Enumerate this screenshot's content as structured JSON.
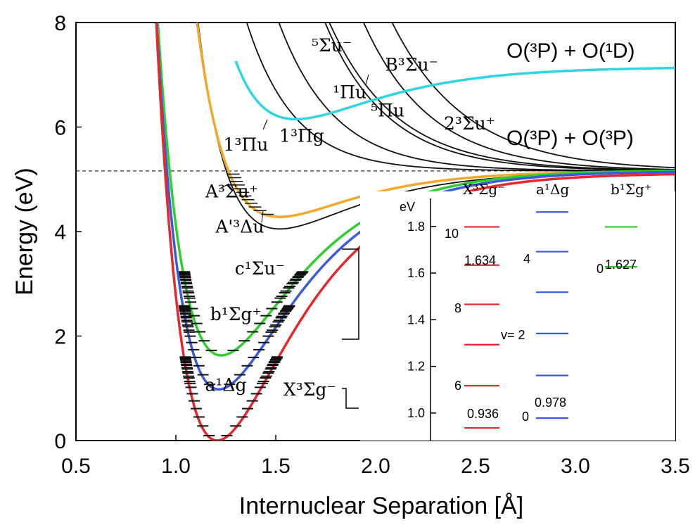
{
  "chart_data": {
    "type": "line",
    "xlabel": "Internuclear Separation [Å]",
    "ylabel": "Energy (eV)",
    "xlim": [
      0.5,
      3.5
    ],
    "ylim": [
      0,
      8
    ],
    "xticks": [
      "0.5",
      "1.0",
      "1.5",
      "2.0",
      "2.5",
      "3.0",
      "3.5"
    ],
    "yticks": [
      "0",
      "2",
      "4",
      "6",
      "8"
    ],
    "dissociation_limit": 5.16,
    "series": [
      {
        "name": "X³Σg⁻",
        "color": "#e8262b",
        "D": 5.12,
        "a": 2.66,
        "re": 1.207,
        "T": 0
      },
      {
        "name": "a¹Δg",
        "color": "#3b5bdb",
        "D": 4.18,
        "a": 2.67,
        "re": 1.215,
        "T": 0.98
      },
      {
        "name": "b¹Σg⁺",
        "color": "#2fce2f",
        "D": 3.55,
        "a": 2.68,
        "re": 1.227,
        "T": 1.63
      },
      {
        "name": "A³Σu⁺ / A'³Δu",
        "color": "#f0a92a",
        "D": 0.88,
        "a": 2.7,
        "re": 1.52,
        "T": 4.28
      },
      {
        "name": "c¹Σu⁻",
        "color": "#111111",
        "D": 1.1,
        "a": 2.6,
        "re": 1.52,
        "T": 4.05
      },
      {
        "name": "B³Σu⁻",
        "color": "#2fd6e0",
        "D": 1.0,
        "a": 2.4,
        "re": 1.6,
        "T": 6.15
      },
      {
        "name": "1³Πu",
        "color": "#111111"
      },
      {
        "name": "1³Πg",
        "color": "#111111"
      },
      {
        "name": "⁵Σu⁻",
        "color": "#111111"
      },
      {
        "name": "¹Πu",
        "color": "#111111"
      },
      {
        "name": "⁵Πu",
        "color": "#111111"
      },
      {
        "name": "2³Σu⁺",
        "color": "#111111"
      }
    ],
    "annotations": {
      "limit_upper": "O(³P) + O(¹D)",
      "limit_lower": "O(³P) + O(³P)",
      "labels": [
        {
          "text": "⁵Σu⁻",
          "x": 1.78,
          "y": 7.45
        },
        {
          "text": "B³Σu⁻",
          "x": 2.18,
          "y": 7.08
        },
        {
          "text": "¹Πu",
          "x": 1.87,
          "y": 6.55
        },
        {
          "text": "⁵Πu",
          "x": 2.06,
          "y": 6.2
        },
        {
          "text": "2³Σu⁺",
          "x": 2.47,
          "y": 5.95
        },
        {
          "text": "1³Πu",
          "x": 1.35,
          "y": 5.55
        },
        {
          "text": "1³Πg",
          "x": 1.63,
          "y": 5.72
        },
        {
          "text": "A³Σu⁺",
          "x": 1.28,
          "y": 4.65
        },
        {
          "text": "A'³Δu",
          "x": 1.32,
          "y": 3.98
        },
        {
          "text": "c¹Σu⁻",
          "x": 1.42,
          "y": 3.18
        },
        {
          "text": "b¹Σg⁺",
          "x": 1.3,
          "y": 2.3
        },
        {
          "text": "a¹Δg",
          "x": 1.25,
          "y": 0.95
        },
        {
          "text": "X³Σg⁻",
          "x": 1.67,
          "y": 0.86
        }
      ]
    },
    "inset": {
      "ylabel": "eV",
      "yticks": [
        "1.0",
        "1.2",
        "1.4",
        "1.6",
        "1.8"
      ],
      "ylim": [
        0.9,
        1.92
      ],
      "columns": [
        {
          "header": "X³Σg⁻",
          "color": "#e8262b",
          "levels": [
            0.936,
            1.117,
            1.293,
            1.466,
            1.634,
            1.798
          ]
        },
        {
          "header": "a¹Δg",
          "color": "#3b5bdb",
          "levels": [
            0.978,
            1.161,
            1.341,
            1.518,
            1.692,
            1.862
          ]
        },
        {
          "header": "b¹Σg⁺",
          "color": "#2fce2f",
          "levels": [
            1.627,
            1.798
          ]
        }
      ],
      "value_labels": {
        "x0": "0.936",
        "x1": "1.634",
        "a0": "0.978",
        "b0": "1.627"
      },
      "v_labels": {
        "x10": "10",
        "x8": "8",
        "x6": "6",
        "a4": "4",
        "a2": "v= 2",
        "a0": "0",
        "b0": "0"
      }
    }
  }
}
